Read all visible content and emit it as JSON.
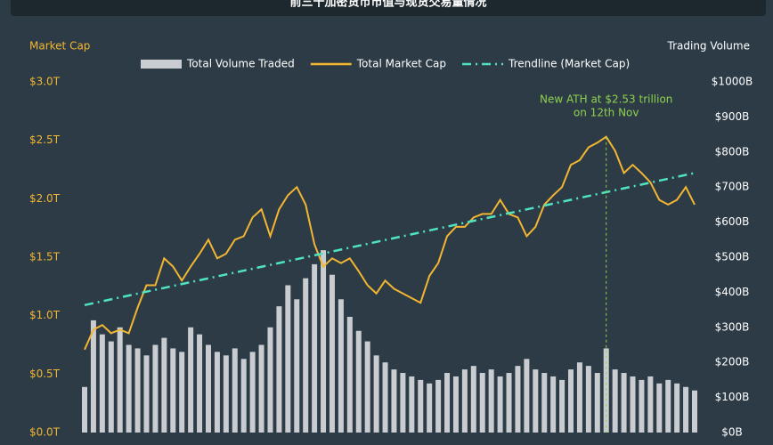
{
  "chart_data": {
    "type": "bar-line",
    "title": "前三十加密货币市值与现货交易量情况",
    "y_label": "Market Cap",
    "y2_label": "Trading Volume",
    "ylim": [
      0,
      3
    ],
    "yticks": [
      {
        "value": 0,
        "label": "$0.0T"
      },
      {
        "value": 0.5,
        "label": "$0.5T"
      },
      {
        "value": 1,
        "label": "$1.0T"
      },
      {
        "value": 1.5,
        "label": "$1.5T"
      },
      {
        "value": 2,
        "label": "$2.0T"
      },
      {
        "value": 2.5,
        "label": "$2.5T"
      },
      {
        "value": 3,
        "label": "$3.0T"
      }
    ],
    "y2lim": [
      0,
      1000
    ],
    "y2ticks": [
      {
        "value": 0,
        "label": "$0B"
      },
      {
        "value": 100,
        "label": "$100B"
      },
      {
        "value": 200,
        "label": "$200B"
      },
      {
        "value": 300,
        "label": "$300B"
      },
      {
        "value": 400,
        "label": "$400B"
      },
      {
        "value": 500,
        "label": "$500B"
      },
      {
        "value": 600,
        "label": "$600B"
      },
      {
        "value": 700,
        "label": "$700B"
      },
      {
        "value": 800,
        "label": "$800B"
      },
      {
        "value": 900,
        "label": "$900B"
      },
      {
        "value": 1000,
        "label": "$1000B"
      }
    ],
    "series": [
      {
        "name": "Total Volume Traded",
        "type": "bar",
        "axis": "y2",
        "color": "#c9cdd1",
        "values": [
          130,
          320,
          280,
          260,
          300,
          250,
          240,
          220,
          250,
          270,
          240,
          230,
          300,
          280,
          250,
          230,
          220,
          240,
          210,
          230,
          250,
          300,
          360,
          420,
          380,
          440,
          480,
          520,
          450,
          380,
          330,
          290,
          260,
          220,
          200,
          180,
          170,
          160,
          150,
          140,
          150,
          170,
          160,
          180,
          190,
          170,
          180,
          160,
          170,
          190,
          210,
          180,
          170,
          160,
          150,
          180,
          200,
          190,
          170,
          240,
          180,
          170,
          160,
          150,
          160,
          140,
          150,
          140,
          130,
          120
        ]
      },
      {
        "name": "Total Market Cap",
        "type": "line",
        "color": "#f2b632",
        "values": [
          0.71,
          0.88,
          0.92,
          0.85,
          0.88,
          0.85,
          1.07,
          1.26,
          1.26,
          1.49,
          1.42,
          1.3,
          1.42,
          1.53,
          1.65,
          1.49,
          1.53,
          1.65,
          1.68,
          1.84,
          1.91,
          1.68,
          1.91,
          2.03,
          2.1,
          1.95,
          1.61,
          1.42,
          1.49,
          1.45,
          1.49,
          1.38,
          1.26,
          1.19,
          1.3,
          1.23,
          1.19,
          1.15,
          1.11,
          1.34,
          1.45,
          1.68,
          1.76,
          1.76,
          1.84,
          1.87,
          1.87,
          1.99,
          1.87,
          1.84,
          1.68,
          1.76,
          1.95,
          2.03,
          2.1,
          2.29,
          2.33,
          2.44,
          2.48,
          2.53,
          2.41,
          2.22,
          2.29,
          2.22,
          2.14,
          1.99,
          1.95,
          1.99,
          2.1,
          1.95
        ]
      },
      {
        "name": "Trendline (Market Cap)",
        "type": "trend",
        "color": "#4fe3c1",
        "x": [
          0,
          69
        ],
        "values": [
          1.09,
          2.22
        ]
      }
    ],
    "annotation": {
      "index": 59,
      "color": "#8fd14f",
      "lines": [
        "New ATH at $2.53 trillion",
        "on 12th Nov"
      ]
    }
  }
}
